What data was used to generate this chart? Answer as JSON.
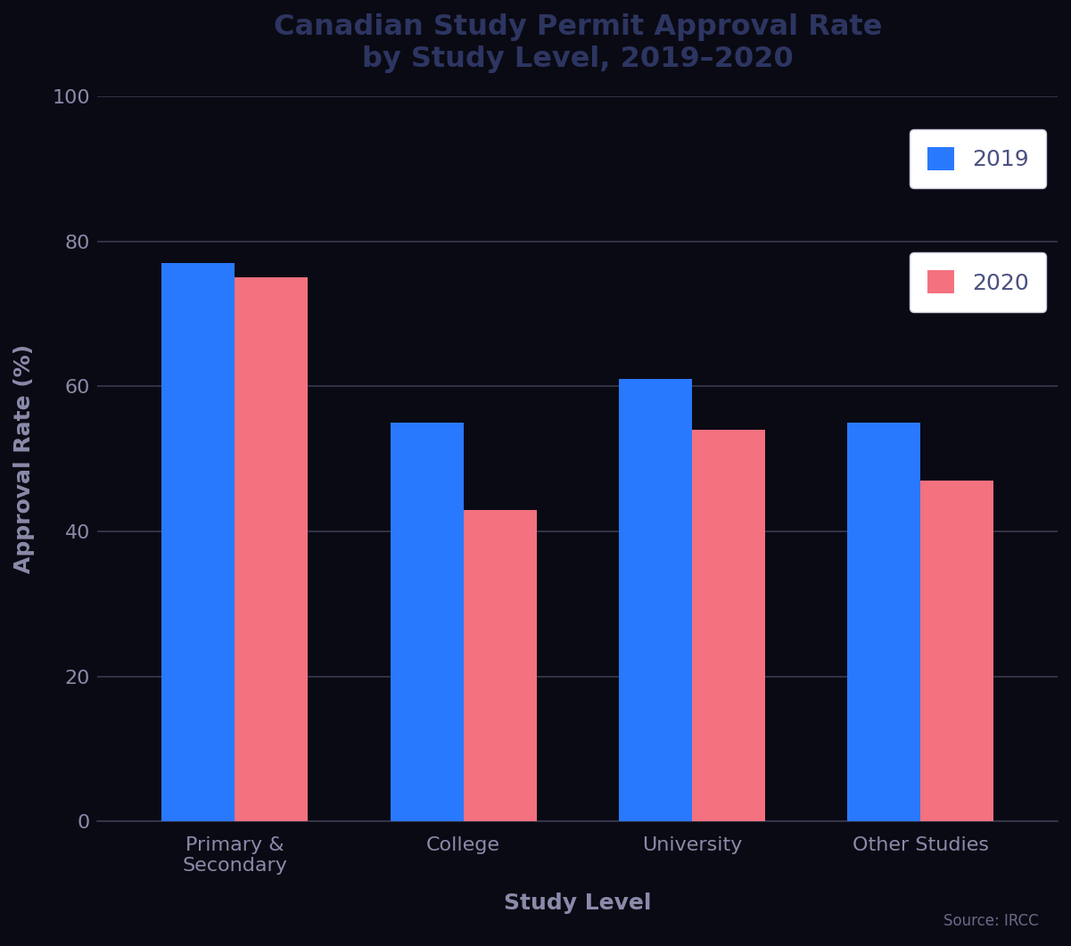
{
  "title": "Canadian Study Permit Approval Rate\nby Study Level, 2019–2020",
  "xlabel": "Study Level",
  "ylabel": "Approval Rate (%)",
  "categories": [
    "Primary &\nSecondary",
    "College",
    "University",
    "Other Studies"
  ],
  "values_2019": [
    77,
    55,
    61,
    55
  ],
  "values_2020": [
    75,
    43,
    54,
    47
  ],
  "color_2019": "#2979FF",
  "color_2020": "#F4717F",
  "background_color": "#0a0a14",
  "plot_background": "#0a0a14",
  "grid_color": "#3a3a50",
  "tick_color": "#8a8aaa",
  "title_color": "#2d3561",
  "legend_bg": "#ffffff",
  "legend_text_color": "#4a5080",
  "legend_edge_color": "#ccccdd",
  "ylim": [
    0,
    100
  ],
  "yticks": [
    0,
    20,
    40,
    60,
    80,
    100
  ],
  "bar_width": 0.32,
  "source_text": "Source: IRCC",
  "title_fontsize": 23,
  "axis_label_fontsize": 18,
  "tick_fontsize": 16,
  "legend_fontsize": 18,
  "source_fontsize": 12
}
